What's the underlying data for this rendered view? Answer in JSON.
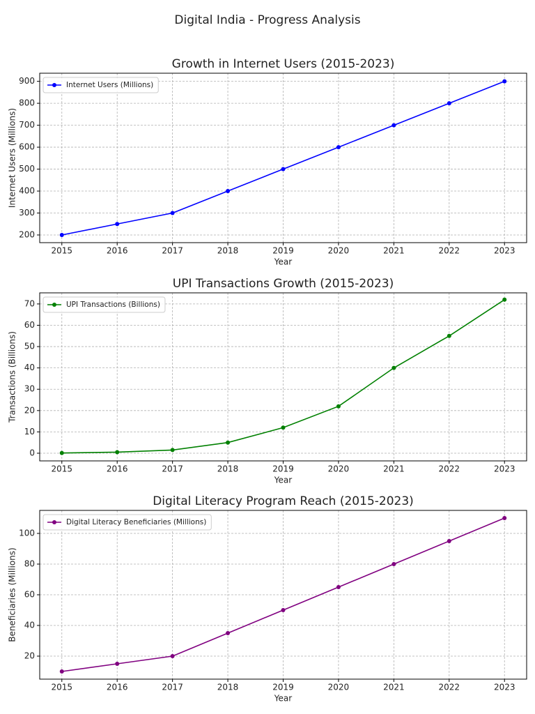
{
  "title": "Digital India - Progress Analysis",
  "chart_data": [
    {
      "type": "line",
      "title": "Growth in Internet Users (2015-2023)",
      "xlabel": "Year",
      "ylabel": "Internet Users (Millions)",
      "x": [
        2015,
        2016,
        2017,
        2018,
        2019,
        2020,
        2021,
        2022,
        2023
      ],
      "series": [
        {
          "name": "Internet Users (Millions)",
          "color": "#0000ff",
          "values": [
            200,
            250,
            300,
            400,
            500,
            600,
            700,
            800,
            900
          ]
        }
      ],
      "xlim": [
        2014.6,
        2023.4
      ],
      "ylim": [
        165,
        937
      ],
      "xticks": [
        2015,
        2016,
        2017,
        2018,
        2019,
        2020,
        2021,
        2022,
        2023
      ],
      "yticks": [
        200,
        300,
        400,
        500,
        600,
        700,
        800,
        900
      ],
      "grid": true,
      "legend": "upper-left"
    },
    {
      "type": "line",
      "title": "UPI Transactions Growth (2015-2023)",
      "xlabel": "Year",
      "ylabel": "Transactions (Billions)",
      "x": [
        2015,
        2016,
        2017,
        2018,
        2019,
        2020,
        2021,
        2022,
        2023
      ],
      "series": [
        {
          "name": "UPI Transactions (Billions)",
          "color": "#008000",
          "values": [
            0.1,
            0.5,
            1.5,
            5,
            12,
            22,
            40,
            55,
            72
          ]
        }
      ],
      "xlim": [
        2014.6,
        2023.4
      ],
      "ylim": [
        -3.6,
        75.2
      ],
      "xticks": [
        2015,
        2016,
        2017,
        2018,
        2019,
        2020,
        2021,
        2022,
        2023
      ],
      "yticks": [
        0,
        10,
        20,
        30,
        40,
        50,
        60,
        70
      ],
      "grid": true,
      "legend": "upper-left"
    },
    {
      "type": "line",
      "title": "Digital Literacy Program Reach (2015-2023)",
      "xlabel": "Year",
      "ylabel": "Beneficiaries (Millions)",
      "x": [
        2015,
        2016,
        2017,
        2018,
        2019,
        2020,
        2021,
        2022,
        2023
      ],
      "series": [
        {
          "name": "Digital Literacy Beneficiaries (Millions)",
          "color": "#800080",
          "values": [
            10,
            15,
            20,
            35,
            50,
            65,
            80,
            95,
            110
          ]
        }
      ],
      "xlim": [
        2014.6,
        2023.4
      ],
      "ylim": [
        5,
        115
      ],
      "xticks": [
        2015,
        2016,
        2017,
        2018,
        2019,
        2020,
        2021,
        2022,
        2023
      ],
      "yticks": [
        20,
        40,
        60,
        80,
        100
      ],
      "grid": true,
      "legend": "upper-left"
    }
  ]
}
